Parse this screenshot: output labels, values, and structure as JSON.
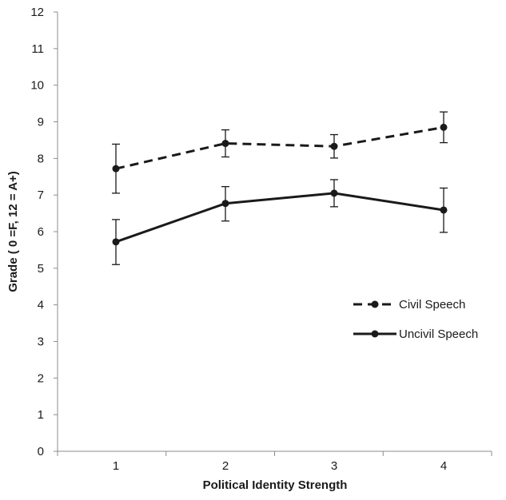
{
  "chart_data": {
    "type": "line",
    "title": "",
    "xlabel": "Political Identity Strength",
    "ylabel": "Grade ( 0 =F, 12 = A+)",
    "categories": [
      "1",
      "2",
      "3",
      "4"
    ],
    "ylim": [
      0,
      12
    ],
    "yticks": [
      "0",
      "1",
      "2",
      "3",
      "4",
      "5",
      "6",
      "7",
      "8",
      "9",
      "10",
      "11",
      "12"
    ],
    "grid": false,
    "legend": "right",
    "series": [
      {
        "name": "Civil Speech",
        "style": "dashed",
        "color": "#1a1a1a",
        "values": [
          7.72,
          8.41,
          8.33,
          8.85
        ],
        "err_low": [
          7.05,
          8.04,
          8.01,
          8.43
        ],
        "err_high": [
          8.39,
          8.78,
          8.65,
          9.27
        ]
      },
      {
        "name": "Uncivil Speech",
        "style": "solid",
        "color": "#1a1a1a",
        "values": [
          5.72,
          6.77,
          7.05,
          6.59
        ],
        "err_low": [
          5.1,
          6.29,
          6.68,
          5.98
        ],
        "err_high": [
          6.33,
          7.23,
          7.42,
          7.19
        ]
      }
    ]
  }
}
